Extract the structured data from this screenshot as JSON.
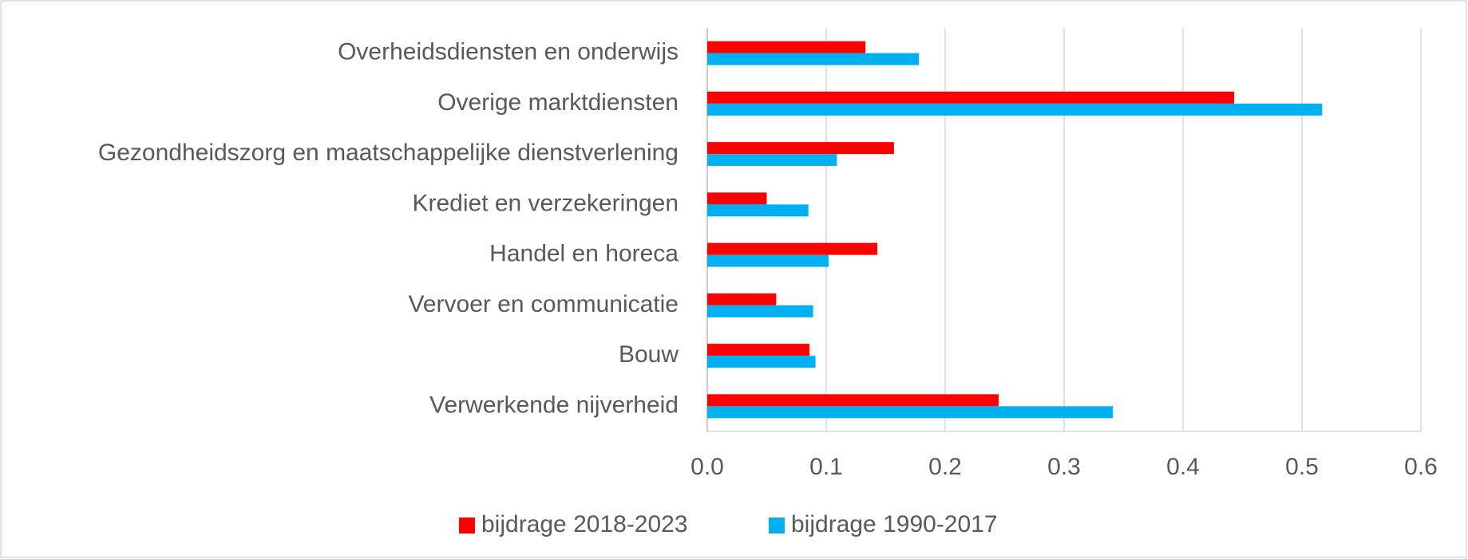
{
  "chart_data": {
    "type": "hbar",
    "categories": [
      "Overheidsdiensten en onderwijs",
      "Overige marktdiensten",
      "Gezondheidszorg en maatschappelijke dienstverlening",
      "Krediet en verzekeringen",
      "Handel en horeca",
      "Vervoer en communicatie",
      "Bouw",
      "Verwerkende nijverheid"
    ],
    "series": [
      {
        "name": "bijdrage 2018-2023",
        "color": "#ff0000",
        "values": [
          0.133,
          0.443,
          0.157,
          0.05,
          0.143,
          0.058,
          0.086,
          0.245
        ]
      },
      {
        "name": "bijdrage 1990-2017",
        "color": "#00b0f0",
        "values": [
          0.178,
          0.517,
          0.109,
          0.085,
          0.102,
          0.089,
          0.091,
          0.341
        ]
      }
    ],
    "xlim": [
      0,
      0.6
    ],
    "xticks": [
      {
        "value": 0,
        "label": "0.0"
      },
      0.1,
      0.2,
      0.3,
      0.4,
      0.5,
      0.6
    ],
    "grid": true,
    "legend": "bottom"
  }
}
